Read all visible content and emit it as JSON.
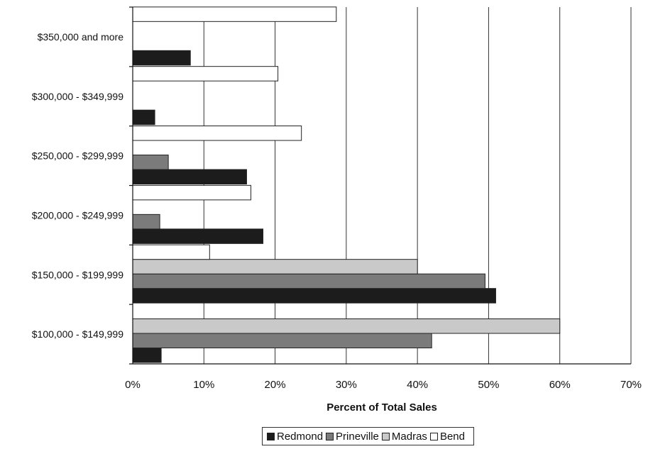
{
  "chart_data": {
    "type": "bar",
    "orientation": "horizontal",
    "categories": [
      "$100,000 - $149,999",
      "$150,000 - $199,999",
      "$200,000 - $249,999",
      "$250,000 - $299,999",
      "$300,000 - $349,999",
      "$350,000 and more"
    ],
    "series": [
      {
        "name": "Redmond",
        "color": "#1c1c1c",
        "values": [
          4,
          51,
          18.3,
          16,
          3.1,
          8.1
        ]
      },
      {
        "name": "Prineville",
        "color": "#7b7b7b",
        "values": [
          42,
          49.5,
          3.8,
          5,
          0,
          0
        ]
      },
      {
        "name": "Madras",
        "color": "#c9c9c9",
        "values": [
          60,
          40,
          0,
          0,
          0,
          0
        ]
      },
      {
        "name": "Bend",
        "color": "#ffffff",
        "values": [
          0,
          10.8,
          16.6,
          23.7,
          20.4,
          28.6
        ]
      }
    ],
    "xlabel": "Percent of Total Sales",
    "ylabel": "",
    "xlim": [
      0,
      70
    ],
    "x_ticks": [
      "0%",
      "10%",
      "20%",
      "30%",
      "40%",
      "50%",
      "60%",
      "70%"
    ],
    "grid": "vertical",
    "legend_position": "bottom"
  }
}
